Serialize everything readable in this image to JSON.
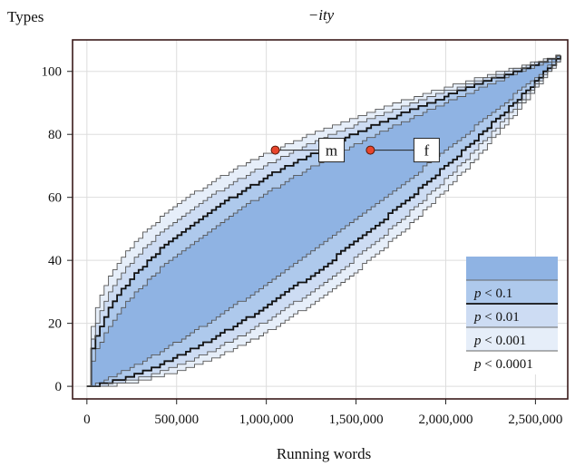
{
  "chart_data": {
    "type": "area",
    "title": "−ity",
    "xlabel": "Running words",
    "ylabel": "Types",
    "xlim": [
      -80000,
      2680000
    ],
    "ylim": [
      -4,
      110
    ],
    "x_ticks": [
      0,
      500000,
      1000000,
      1500000,
      2000000,
      2500000
    ],
    "x_tick_labels": [
      "0",
      "500,000",
      "1,000,000",
      "1,500,000",
      "2,000,000",
      "2,500,000"
    ],
    "y_ticks": [
      0,
      20,
      40,
      60,
      80,
      100
    ],
    "y_tick_labels": [
      "0",
      "20",
      "40",
      "60",
      "80",
      "100"
    ],
    "grid": true,
    "band_x_max": 2640000,
    "total_types": 105,
    "confidence_bands": [
      {
        "label": "p < 0.1",
        "fill": "#8fb3e3",
        "upper_exponent": 0.55,
        "lower_exponent": 1.2
      },
      {
        "label": "p < 0.01",
        "fill": "#aec9ec",
        "upper_exponent": 0.47,
        "lower_exponent": 1.45
      },
      {
        "label": "p < 0.001",
        "fill": "#cddcf3",
        "upper_exponent": 0.41,
        "lower_exponent": 1.66
      },
      {
        "label": "p < 0.0001",
        "fill": "#e6eef9",
        "upper_exponent": 0.36,
        "lower_exponent": 1.85
      }
    ],
    "points": [
      {
        "label": "m",
        "x": 1050000,
        "y": 75
      },
      {
        "label": "f",
        "x": 1580000,
        "y": 75
      }
    ],
    "colors": {
      "point": "#e8452c",
      "panel_border": "#3a1a1a",
      "grid": "#dddddd"
    },
    "legend_position": "bottom-right"
  }
}
